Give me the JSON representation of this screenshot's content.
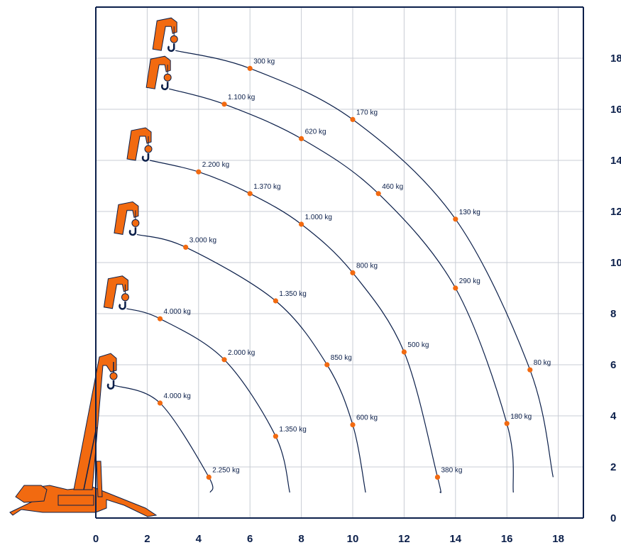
{
  "chart_data": {
    "type": "line",
    "title": "",
    "xlabel": "",
    "ylabel": "",
    "xlim": [
      0,
      19
    ],
    "ylim": [
      0,
      20
    ],
    "x_ticks": [
      0,
      2,
      4,
      6,
      8,
      10,
      12,
      14,
      16,
      18
    ],
    "y_ticks": [
      0,
      2,
      4,
      6,
      8,
      10,
      12,
      14,
      16,
      18
    ],
    "grid": true,
    "colors": {
      "curve": "#0b1f4a",
      "point": "#f26a10",
      "crane": "#f26a10",
      "frame": "#0b1f4a",
      "grid": "#c8ccd4"
    },
    "series": [
      {
        "start": [
          0.7,
          5.2
        ],
        "end": [
          4.45,
          1.0
        ],
        "points": [
          {
            "x": 2.5,
            "y": 4.5,
            "label": "4.000 kg"
          },
          {
            "x": 4.4,
            "y": 1.6,
            "label": "2.250 kg"
          }
        ]
      },
      {
        "start": [
          1.2,
          8.2
        ],
        "end": [
          7.55,
          1.0
        ],
        "points": [
          {
            "x": 2.5,
            "y": 7.8,
            "label": "4.000 kg"
          },
          {
            "x": 5.0,
            "y": 6.2,
            "label": "2.000 kg"
          },
          {
            "x": 7.0,
            "y": 3.2,
            "label": "1.350 kg"
          }
        ]
      },
      {
        "start": [
          1.6,
          11.1
        ],
        "end": [
          10.5,
          1.0
        ],
        "points": [
          {
            "x": 3.5,
            "y": 10.6,
            "label": "3.000 kg"
          },
          {
            "x": 7.0,
            "y": 8.5,
            "label": "1.350 kg"
          },
          {
            "x": 9.0,
            "y": 6.0,
            "label": "850 kg"
          },
          {
            "x": 10.0,
            "y": 3.65,
            "label": "600 kg"
          }
        ]
      },
      {
        "start": [
          2.1,
          14.0
        ],
        "end": [
          13.4,
          1.0
        ],
        "points": [
          {
            "x": 4.0,
            "y": 13.55,
            "label": "2.200 kg"
          },
          {
            "x": 6.0,
            "y": 12.7,
            "label": "1.370 kg"
          },
          {
            "x": 8.0,
            "y": 11.5,
            "label": "1.000 kg"
          },
          {
            "x": 10.0,
            "y": 9.6,
            "label": "800 kg"
          },
          {
            "x": 12.0,
            "y": 6.5,
            "label": "500 kg"
          },
          {
            "x": 13.3,
            "y": 1.6,
            "label": "380 kg"
          }
        ]
      },
      {
        "start": [
          2.85,
          16.8
        ],
        "end": [
          16.25,
          1.0
        ],
        "points": [
          {
            "x": 5.0,
            "y": 16.2,
            "label": "1.100 kg"
          },
          {
            "x": 8.0,
            "y": 14.85,
            "label": "620 kg"
          },
          {
            "x": 11.0,
            "y": 12.7,
            "label": "460 kg"
          },
          {
            "x": 14.0,
            "y": 9.0,
            "label": "290 kg"
          },
          {
            "x": 16.0,
            "y": 3.7,
            "label": "180 kg"
          }
        ]
      },
      {
        "start": [
          3.1,
          18.3
        ],
        "end": [
          17.8,
          1.6
        ],
        "points": [
          {
            "x": 6.0,
            "y": 17.6,
            "label": "300 kg"
          },
          {
            "x": 10.0,
            "y": 15.6,
            "label": "170 kg"
          },
          {
            "x": 14.0,
            "y": 11.7,
            "label": "130 kg"
          },
          {
            "x": 16.9,
            "y": 5.8,
            "label": "80 kg"
          }
        ]
      }
    ]
  }
}
